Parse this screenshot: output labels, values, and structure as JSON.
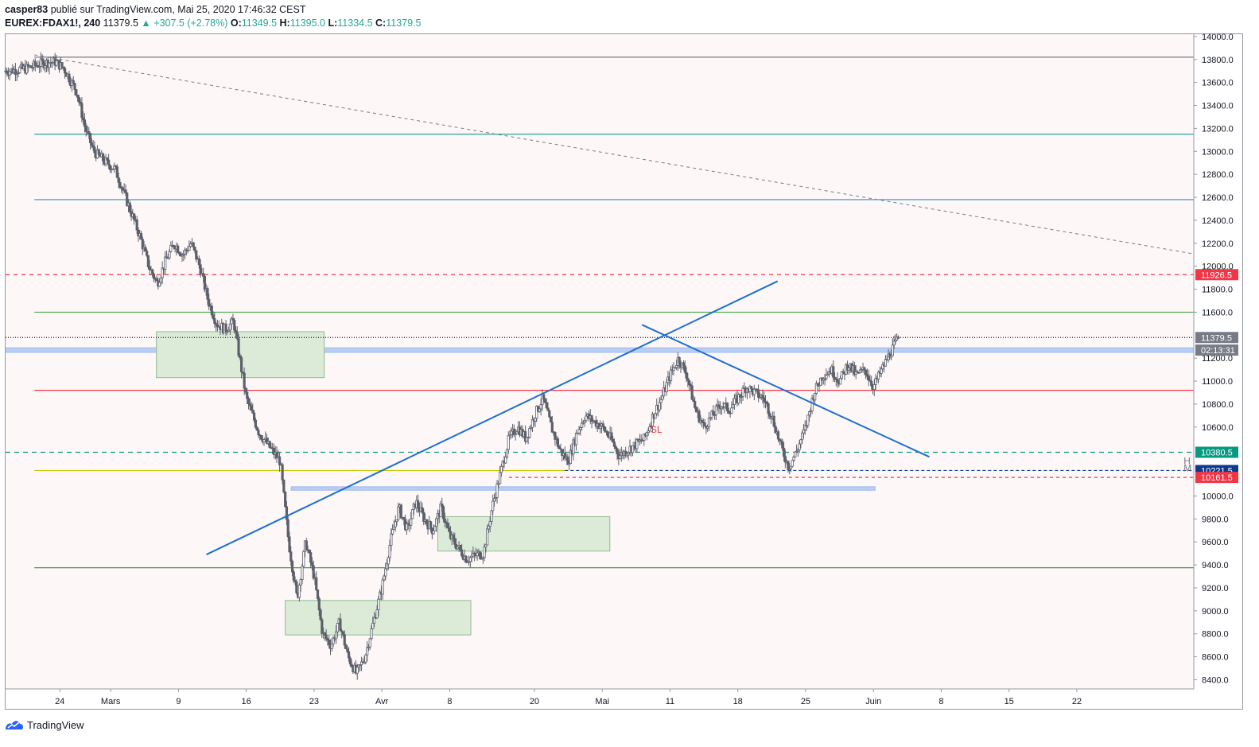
{
  "header": {
    "author": "casper83",
    "published_text": "publié sur TradingView.com, Mai 25, 2020 17:46:32 CEST",
    "symbol": "EUREX:FDAX1!, 240",
    "last": "11379.5",
    "change": "▲ +307.5 (+2.78%)",
    "o_label": "O:",
    "o_val": "11349.5",
    "h_label": "H:",
    "h_val": "11395.0",
    "l_label": "L:",
    "l_val": "11334.5",
    "c_label": "C:",
    "c_val": "11379.5"
  },
  "footer": {
    "brand": "TradingView"
  },
  "colors": {
    "up": "#26a69a",
    "bg": "#fdf7f7",
    "candle": "#5d606b",
    "trend": "#1e6fcf"
  },
  "chart_data": {
    "type": "candlestick",
    "yaxis": {
      "ticks": [
        14000,
        13800,
        13600,
        13400,
        13200,
        13000,
        12800,
        12600,
        12400,
        12200,
        12000,
        11800,
        11600,
        11200,
        11000,
        10800,
        10600,
        10000,
        9800,
        9600,
        9400,
        9200,
        9000,
        8800,
        8600,
        8400
      ],
      "tick_labels": [
        "14000.0",
        "13800.0",
        "13600.0",
        "13400.0",
        "13200.0",
        "13000.0",
        "12800.0",
        "12600.0",
        "12400.0",
        "12200.0",
        "12000.0",
        "11800.0",
        "11600.0",
        "11200.0",
        "11000.0",
        "10800.0",
        "10600.0",
        "10000.0",
        "9800.0",
        "9600.0",
        "9400.0",
        "9200.0",
        "9000.0",
        "8800.0",
        "8600.0",
        "8400.0"
      ],
      "range": [
        8320,
        14020
      ]
    },
    "xaxis": {
      "labels": [
        "24",
        "Mars",
        "9",
        "16",
        "23",
        "Avr",
        "8",
        "20",
        "Mai",
        "11",
        "18",
        "25",
        "Juin",
        "8",
        "15",
        "22"
      ],
      "label_days": [
        0,
        6,
        14,
        22,
        30,
        38,
        46,
        56,
        64,
        72,
        80,
        88,
        96,
        104,
        112,
        120
      ],
      "range": [
        -6.4,
        133.8
      ]
    },
    "price_tags": [
      {
        "value": 11926.5,
        "label": "11926.5",
        "color": "#f23645"
      },
      {
        "value": 11379.5,
        "label": "11379.5",
        "color": "#787b86"
      },
      {
        "value": 11270,
        "label": "02:13:31",
        "color": "#787b86"
      },
      {
        "value": 10380.5,
        "label": "10380.5",
        "color": "#089981"
      },
      {
        "value": 10221.5,
        "label": "10221.5",
        "color": "#0d3b8c"
      },
      {
        "value": 10161.5,
        "label": "10161.5",
        "color": "#f23645"
      }
    ],
    "levels": [
      {
        "value": 13820,
        "color": "#787b86",
        "dash": "",
        "from_day": -3,
        "to_day": 133.8
      },
      {
        "value": 13150,
        "color": "#26a69a",
        "dash": "",
        "from_day": -3,
        "to_day": 133.8
      },
      {
        "value": 12580,
        "color": "#2196c9",
        "dash": "",
        "from_day": -3,
        "to_day": 133.8
      },
      {
        "value": 11926.5,
        "color": "#f23645",
        "dash": "5,5",
        "from_day": -6.4,
        "to_day": 133.8
      },
      {
        "value": 11600,
        "color": "#4caf50",
        "dash": "",
        "from_day": -3,
        "to_day": 133.8
      },
      {
        "value": 11379.5,
        "color": "#131722",
        "dash": "1,2",
        "from_day": -6.4,
        "to_day": 133.8
      },
      {
        "value": 10920,
        "color": "#f23645",
        "dash": "",
        "from_day": -3,
        "to_day": 133.8
      },
      {
        "value": 10380.5,
        "color": "#089981",
        "dash": "6,5",
        "from_day": -6.4,
        "to_day": 133.8
      },
      {
        "value": 10221.5,
        "color": "#c5c800",
        "dash": "",
        "from_day": -3,
        "to_day": 59.6
      },
      {
        "value": 10221.5,
        "color": "#0d3b8c",
        "dash": "4,3",
        "from_day": 59.6,
        "to_day": 133.8
      },
      {
        "value": 10161.5,
        "color": "#f23645",
        "dash": "4,4",
        "from_day": 53,
        "to_day": 133.8
      },
      {
        "value": 9375,
        "color": "#388e3c",
        "dash": "",
        "from_day": -3,
        "to_day": 133.8
      }
    ],
    "zones": [
      {
        "d0": -6.4,
        "d1": 133.8,
        "top": 11290,
        "bottom": 11250,
        "fill": "#b9cef5",
        "stroke": "#9db9ef"
      },
      {
        "d0": 27.3,
        "d1": 96.2,
        "top": 10080,
        "bottom": 10050,
        "fill": "#b9cef5",
        "stroke": "#9db9ef"
      }
    ],
    "boxes": [
      {
        "d0": 11.4,
        "d1": 31.2,
        "top": 11430,
        "bottom": 11030
      },
      {
        "d0": 44.6,
        "d1": 64.9,
        "top": 9820,
        "bottom": 9520
      },
      {
        "d0": 26.6,
        "d1": 48.5,
        "top": 9090,
        "bottom": 8790
      }
    ],
    "trendlines": [
      {
        "d0": 17.3,
        "v0": 9490,
        "d1": 84.7,
        "v1": 11870,
        "color": "#1e6fcf",
        "width": 2,
        "dash": ""
      },
      {
        "d0": 68.7,
        "v0": 11490,
        "d1": 102.6,
        "v1": 10340,
        "color": "#1e6fcf",
        "width": 2,
        "dash": ""
      },
      {
        "d0": -3,
        "v0": 13840,
        "d1": 133.6,
        "v1": 12110,
        "color": "#787b86",
        "width": 1,
        "dash": "4,4"
      }
    ],
    "annotations": [
      {
        "text": "SL",
        "day": 69.7,
        "value": 10550,
        "color": "#f23645"
      },
      {
        "text": "H",
        "day": 132.6,
        "value": 10275,
        "color": "#787b86"
      },
      {
        "text": "M",
        "day": 132.6,
        "value": 10215,
        "color": "#787b86"
      }
    ],
    "ohlc_path": [
      [
        -6.4,
        13700
      ],
      [
        -4,
        13720
      ],
      [
        -2,
        13770
      ],
      [
        -0.5,
        13780
      ],
      [
        0.5,
        13720
      ],
      [
        2,
        13520
      ],
      [
        3,
        13200
      ],
      [
        4,
        13000
      ],
      [
        5.5,
        12900
      ],
      [
        6.5,
        12850
      ],
      [
        7.5,
        12650
      ],
      [
        8.5,
        12450
      ],
      [
        9.5,
        12250
      ],
      [
        10.5,
        12000
      ],
      [
        11.5,
        11850
      ],
      [
        12.5,
        12050
      ],
      [
        13.5,
        12200
      ],
      [
        14.5,
        12100
      ],
      [
        15.5,
        12200
      ],
      [
        16.5,
        12000
      ],
      [
        17.5,
        11700
      ],
      [
        18.5,
        11500
      ],
      [
        19.5,
        11450
      ],
      [
        20.5,
        11520
      ],
      [
        22,
        10850
      ],
      [
        23.5,
        10550
      ],
      [
        24.5,
        10450
      ],
      [
        26,
        10300
      ],
      [
        27,
        9600
      ],
      [
        28,
        9100
      ],
      [
        29,
        9600
      ],
      [
        30,
        9300
      ],
      [
        31,
        8800
      ],
      [
        32,
        8700
      ],
      [
        33,
        8900
      ],
      [
        34,
        8600
      ],
      [
        35,
        8450
      ],
      [
        36,
        8600
      ],
      [
        37,
        8900
      ],
      [
        38,
        9200
      ],
      [
        39,
        9600
      ],
      [
        40,
        9900
      ],
      [
        41,
        9700
      ],
      [
        42,
        9950
      ],
      [
        43,
        9800
      ],
      [
        44,
        9700
      ],
      [
        45,
        9900
      ],
      [
        46,
        9650
      ],
      [
        47,
        9550
      ],
      [
        48,
        9450
      ],
      [
        49,
        9480
      ],
      [
        50,
        9500
      ],
      [
        51,
        9900
      ],
      [
        52,
        10200
      ],
      [
        53,
        10500
      ],
      [
        54,
        10600
      ],
      [
        55,
        10500
      ],
      [
        56,
        10700
      ],
      [
        57,
        10850
      ],
      [
        58,
        10600
      ],
      [
        59,
        10400
      ],
      [
        60,
        10300
      ],
      [
        61,
        10550
      ],
      [
        62,
        10700
      ],
      [
        63,
        10650
      ],
      [
        64,
        10600
      ],
      [
        65,
        10500
      ],
      [
        66,
        10350
      ],
      [
        67,
        10400
      ],
      [
        68,
        10450
      ],
      [
        69,
        10500
      ],
      [
        70,
        10700
      ],
      [
        71,
        10850
      ],
      [
        72,
        11050
      ],
      [
        73,
        11200
      ],
      [
        74,
        11050
      ],
      [
        75,
        10750
      ],
      [
        76,
        10600
      ],
      [
        77,
        10700
      ],
      [
        78,
        10800
      ],
      [
        79,
        10750
      ],
      [
        80,
        10850
      ],
      [
        81,
        10950
      ],
      [
        82,
        10900
      ],
      [
        83,
        10850
      ],
      [
        84,
        10700
      ],
      [
        85,
        10450
      ],
      [
        86,
        10250
      ],
      [
        87,
        10400
      ],
      [
        88,
        10600
      ],
      [
        89,
        10900
      ],
      [
        90,
        11050
      ],
      [
        91,
        11100
      ],
      [
        92,
        11000
      ],
      [
        93,
        11150
      ],
      [
        94,
        11050
      ],
      [
        95,
        11100
      ],
      [
        96,
        10950
      ],
      [
        97,
        11100
      ],
      [
        98,
        11250
      ],
      [
        99,
        11379.5
      ]
    ]
  }
}
